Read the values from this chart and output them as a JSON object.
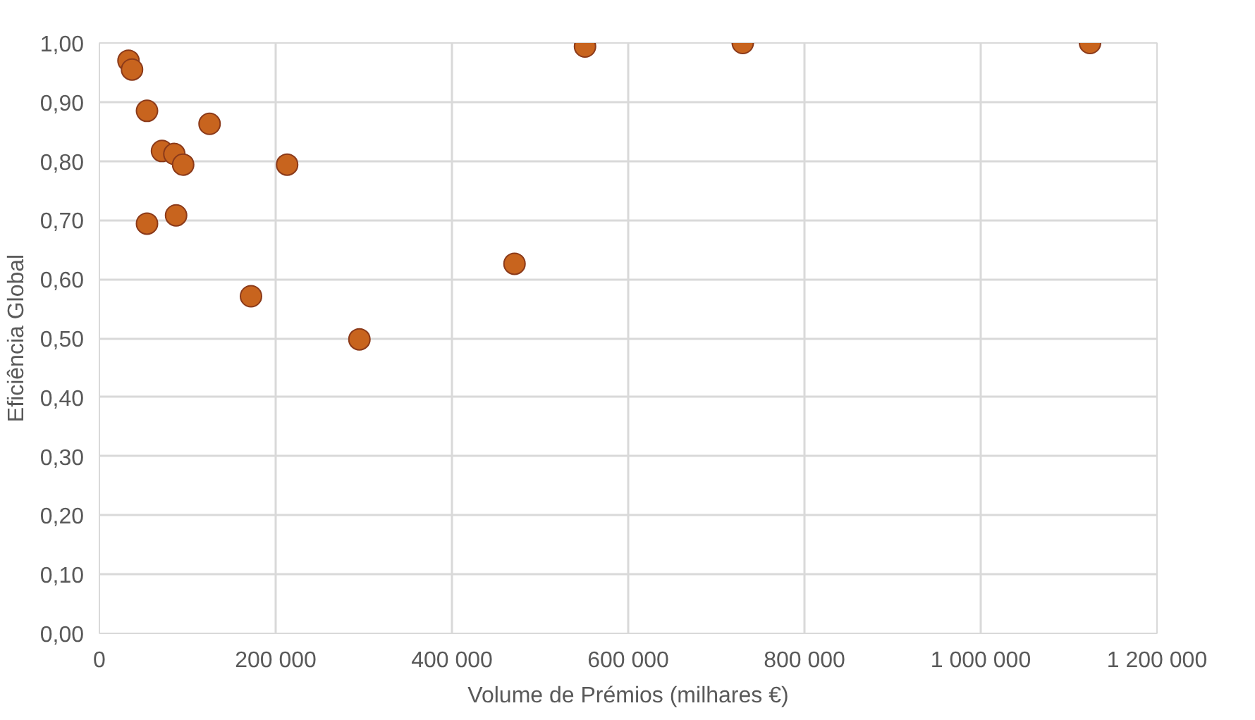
{
  "chart_data": {
    "type": "scatter",
    "xlabel": "Volume de Prémios (milhares €)",
    "ylabel": "Eficiência Global",
    "x": [
      33000,
      37000,
      54000,
      125000,
      71000,
      85000,
      95000,
      213000,
      54000,
      87000,
      471000,
      172000,
      295000,
      551000,
      730000,
      1124000
    ],
    "series": [
      {
        "color": "#c8641e",
        "values": [
          0.97,
          0.955,
          0.885,
          0.863,
          0.817,
          0.812,
          0.794,
          0.794,
          0.694,
          0.708,
          0.626,
          0.571,
          0.498,
          0.994,
          1.0,
          1.0
        ]
      }
    ],
    "xlim": [
      0,
      1200000
    ],
    "ylim": [
      0,
      1
    ],
    "xticks": [
      0,
      {
        "value": 200000,
        "label": "200 000"
      },
      {
        "value": 400000,
        "label": "400 000"
      },
      {
        "value": 600000,
        "label": "600 000"
      },
      {
        "value": 800000,
        "label": "800 000"
      },
      {
        "value": 1000000,
        "label": "1 000 000"
      },
      {
        "value": 1200000,
        "label": "1 200 000"
      }
    ],
    "yticks": [
      {
        "value": 0,
        "label": "0,00"
      },
      {
        "value": 0.1,
        "label": "0,10"
      },
      {
        "value": 0.2,
        "label": "0,20"
      },
      {
        "value": 0.3,
        "label": "0,30"
      },
      {
        "value": 0.4,
        "label": "0,40"
      },
      {
        "value": 0.5,
        "label": "0,50"
      },
      {
        "value": 0.6,
        "label": "0,60"
      },
      {
        "value": 0.7,
        "label": "0,70"
      },
      {
        "value": 0.8,
        "label": "0,80"
      },
      {
        "value": 0.9,
        "label": "0,90"
      },
      {
        "value": 1,
        "label": "1,00"
      }
    ],
    "grid": true,
    "marker": "circle"
  }
}
